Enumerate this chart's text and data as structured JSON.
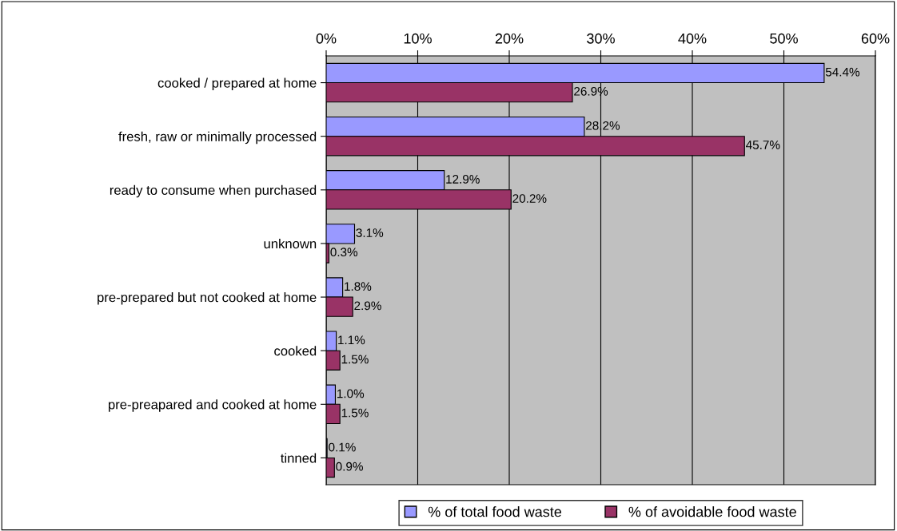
{
  "chart_data": {
    "type": "bar",
    "orientation": "horizontal",
    "categories": [
      "cooked / prepared at home",
      "fresh, raw or minimally processed",
      "ready to consume when purchased",
      "unknown",
      "pre-prepared but not cooked at home",
      "cooked",
      "pre-preapared and cooked at home",
      "tinned"
    ],
    "series": [
      {
        "name": "% of total food waste",
        "color": "#9999ff",
        "values": [
          54.4,
          28.2,
          12.9,
          3.1,
          1.8,
          1.1,
          1.0,
          0.1
        ],
        "value_labels": [
          "54.4%",
          "28.2%",
          "12.9%",
          "3.1%",
          "1.8%",
          "1.1%",
          "1.0%",
          "0.1%"
        ]
      },
      {
        "name": "% of avoidable food waste",
        "color": "#993366",
        "values": [
          26.9,
          45.7,
          20.2,
          0.3,
          2.9,
          1.5,
          1.5,
          0.9
        ],
        "value_labels": [
          "26.9%",
          "45.7%",
          "20.2%",
          "0.3%",
          "2.9%",
          "1.5%",
          "1.5%",
          "0.9%"
        ]
      }
    ],
    "xlim": [
      0,
      60
    ],
    "xticks": [
      {
        "value": 0,
        "label": "0%"
      },
      {
        "value": 10,
        "label": "10%"
      },
      {
        "value": 20,
        "label": "20%"
      },
      {
        "value": 30,
        "label": "30%"
      },
      {
        "value": 40,
        "label": "40%"
      },
      {
        "value": 50,
        "label": "50%"
      },
      {
        "value": 60,
        "label": "60%"
      }
    ],
    "grid": "x",
    "legend": "bottom"
  }
}
